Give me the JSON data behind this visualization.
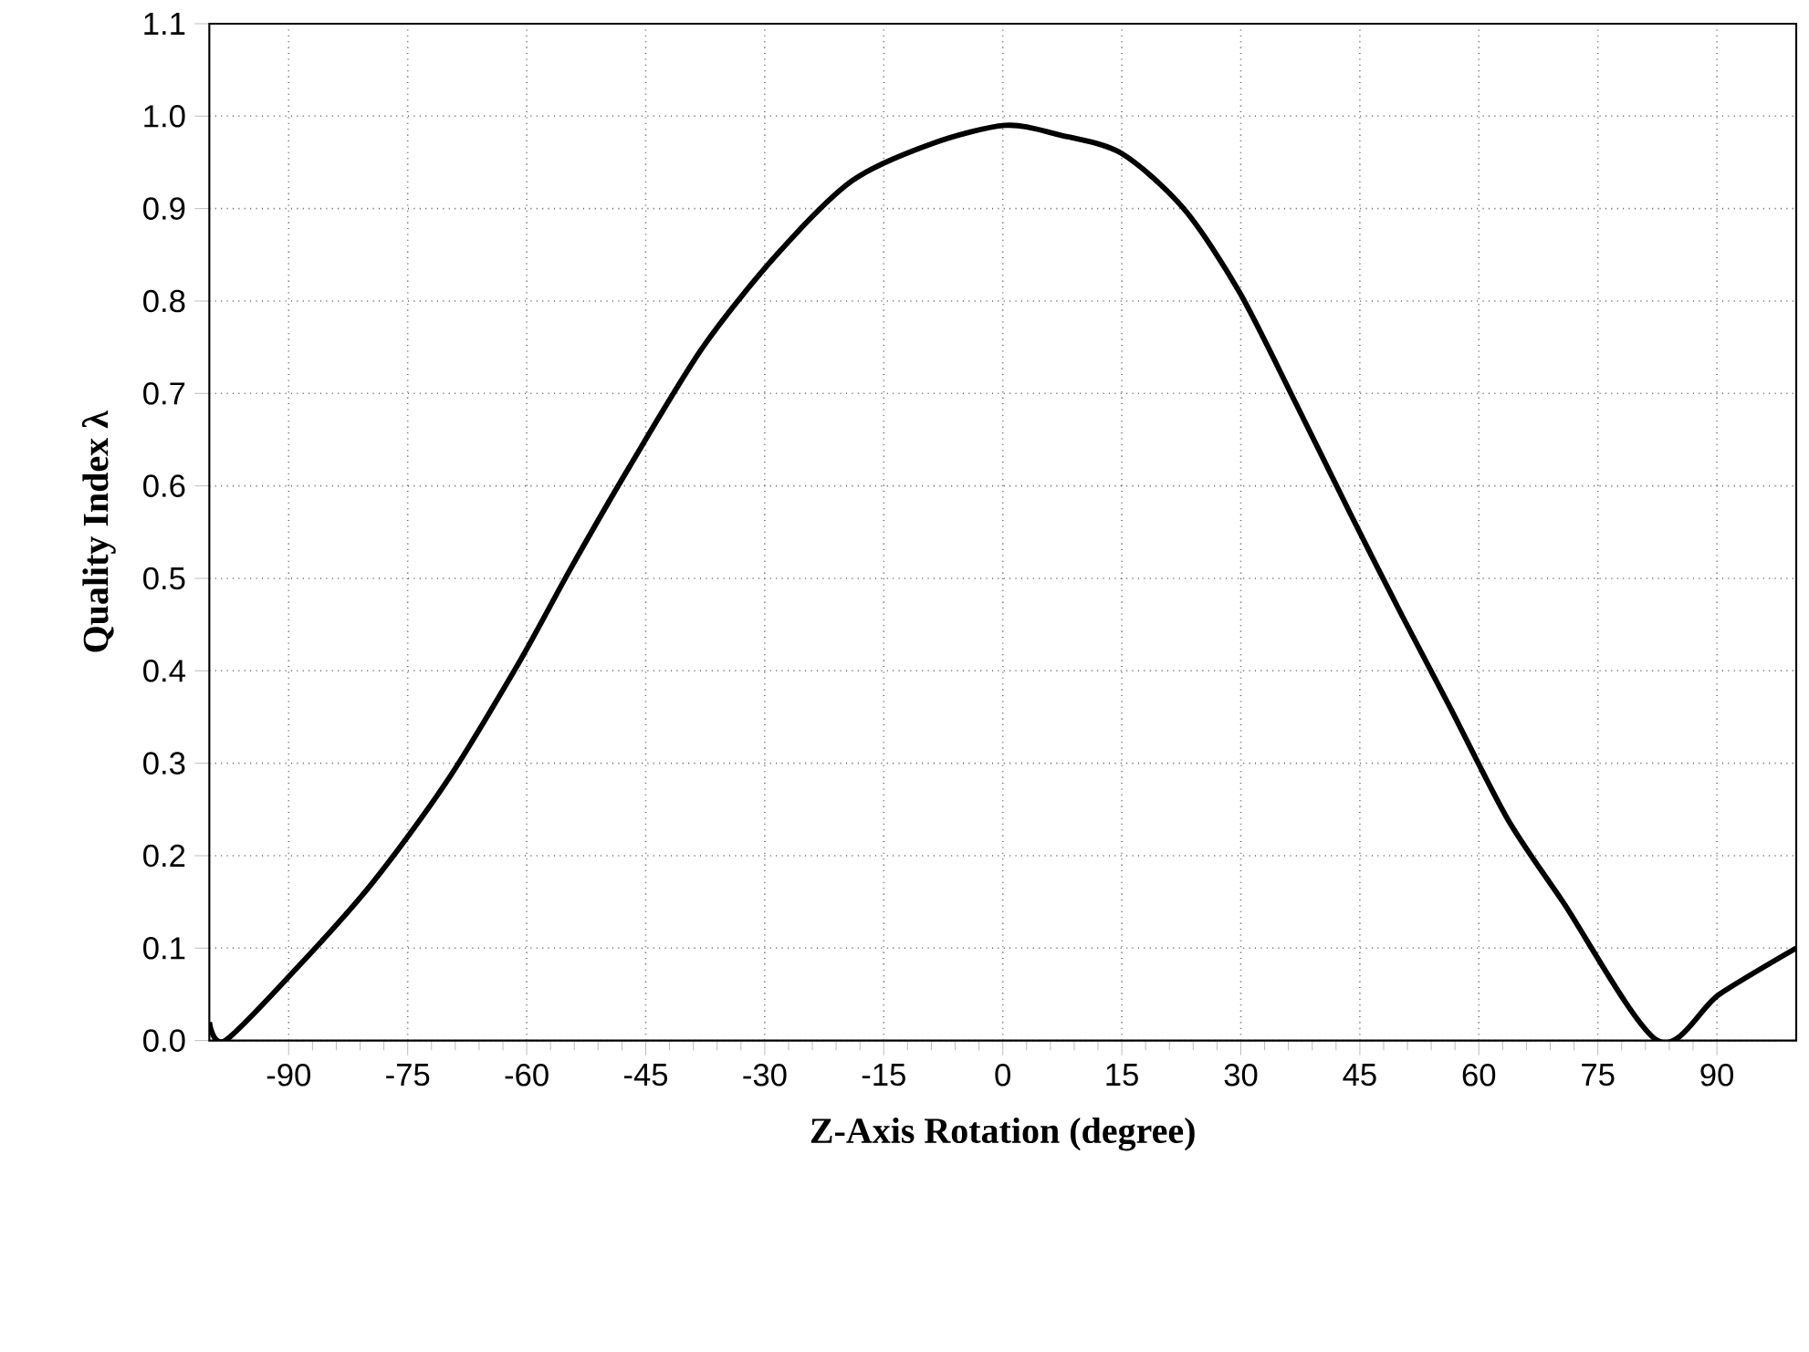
{
  "chart_data": {
    "type": "line",
    "xlabel": "Z-Axis Rotation (degree)",
    "ylabel": "Quality Index λ",
    "x": [
      -100,
      -98,
      -88.8,
      -79.5,
      -70.1,
      -60.9,
      -54.5,
      -47.1,
      -37.8,
      -28.5,
      -19,
      -9,
      0.3,
      7,
      14.9,
      22.8,
      29.8,
      36.9,
      43.8,
      50.3,
      56.4,
      63.6,
      70.6,
      82.5,
      90.3,
      100
    ],
    "values": [
      0.02,
      0,
      0.08,
      0.17,
      0.28,
      0.41,
      0.51,
      0.62,
      0.75,
      0.85,
      0.93,
      0.97,
      0.99,
      0.98,
      0.96,
      0.9,
      0.81,
      0.69,
      0.57,
      0.46,
      0.36,
      0.24,
      0.15,
      0,
      0.05,
      0.1
    ],
    "color": "#000000",
    "line_style": "solid",
    "xlim": [
      -100,
      100
    ],
    "ylim": [
      0,
      1.1
    ],
    "xticks": [
      -90,
      -75,
      -60,
      -45,
      -30,
      -15,
      0,
      15,
      30,
      45,
      60,
      75,
      90
    ],
    "yticks": [
      {
        "value": 0,
        "label": "0.0"
      },
      0.1,
      0.2,
      0.3,
      0.4,
      0.5,
      0.6,
      0.7,
      0.8,
      0.9,
      {
        "value": 1,
        "label": "1.0"
      },
      1.1
    ],
    "grid": true
  }
}
